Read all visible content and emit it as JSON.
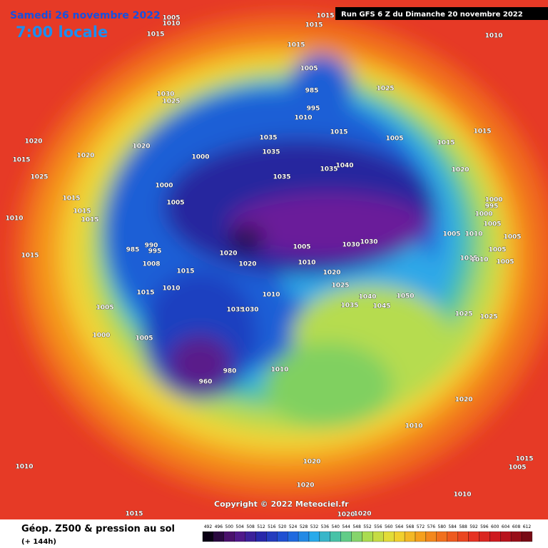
{
  "header": {
    "date": "Samedi 26 novembre 2022",
    "time": "7:00 locale",
    "run": "Run GFS 6 Z du Dimanche 20 novembre 2022"
  },
  "copyright": "Copyright © 2022 Meteociel.fr",
  "footer": {
    "title": "Géop. Z500 & pression au sol",
    "subtitle": "(+ 144h)"
  },
  "colorbar": {
    "ticks": [
      492,
      496,
      500,
      504,
      508,
      512,
      516,
      520,
      524,
      528,
      532,
      536,
      540,
      544,
      548,
      552,
      556,
      560,
      564,
      568,
      572,
      576,
      580,
      584,
      588,
      592,
      596,
      600,
      604,
      608,
      612
    ]
  },
  "isobar_labels": [
    "1005",
    "1010",
    "1015",
    "1015",
    "1015",
    "1015",
    "1010",
    "1030",
    "1025",
    "1025",
    "1005",
    "985",
    "1010",
    "995",
    "1020",
    "1015",
    "1020",
    "1020",
    "1000",
    "1035",
    "1035",
    "1015",
    "1005",
    "1015",
    "1015",
    "1025",
    "1000",
    "1035",
    "1035",
    "1040",
    "1020",
    "1015",
    "1015",
    "1015",
    "1010",
    "1005",
    "1000",
    "995",
    "1000",
    "1005",
    "985",
    "990",
    "995",
    "1005",
    "1010",
    "1005",
    "1015",
    "1008",
    "1020",
    "1020",
    "1005",
    "1030",
    "1030",
    "1010",
    "1015",
    "1010",
    "1005",
    "1005",
    "1015",
    "1020",
    "1025",
    "1010",
    "1015",
    "1010",
    "1040",
    "1050",
    "1035",
    "1045",
    "1005",
    "1035",
    "1030",
    "1025",
    "1025",
    "1000",
    "1005",
    "960",
    "980",
    "1010",
    "1020",
    "1010",
    "1020",
    "1015",
    "1005",
    "1020",
    "1010",
    "1010",
    "1015",
    "1020",
    "1020"
  ]
}
